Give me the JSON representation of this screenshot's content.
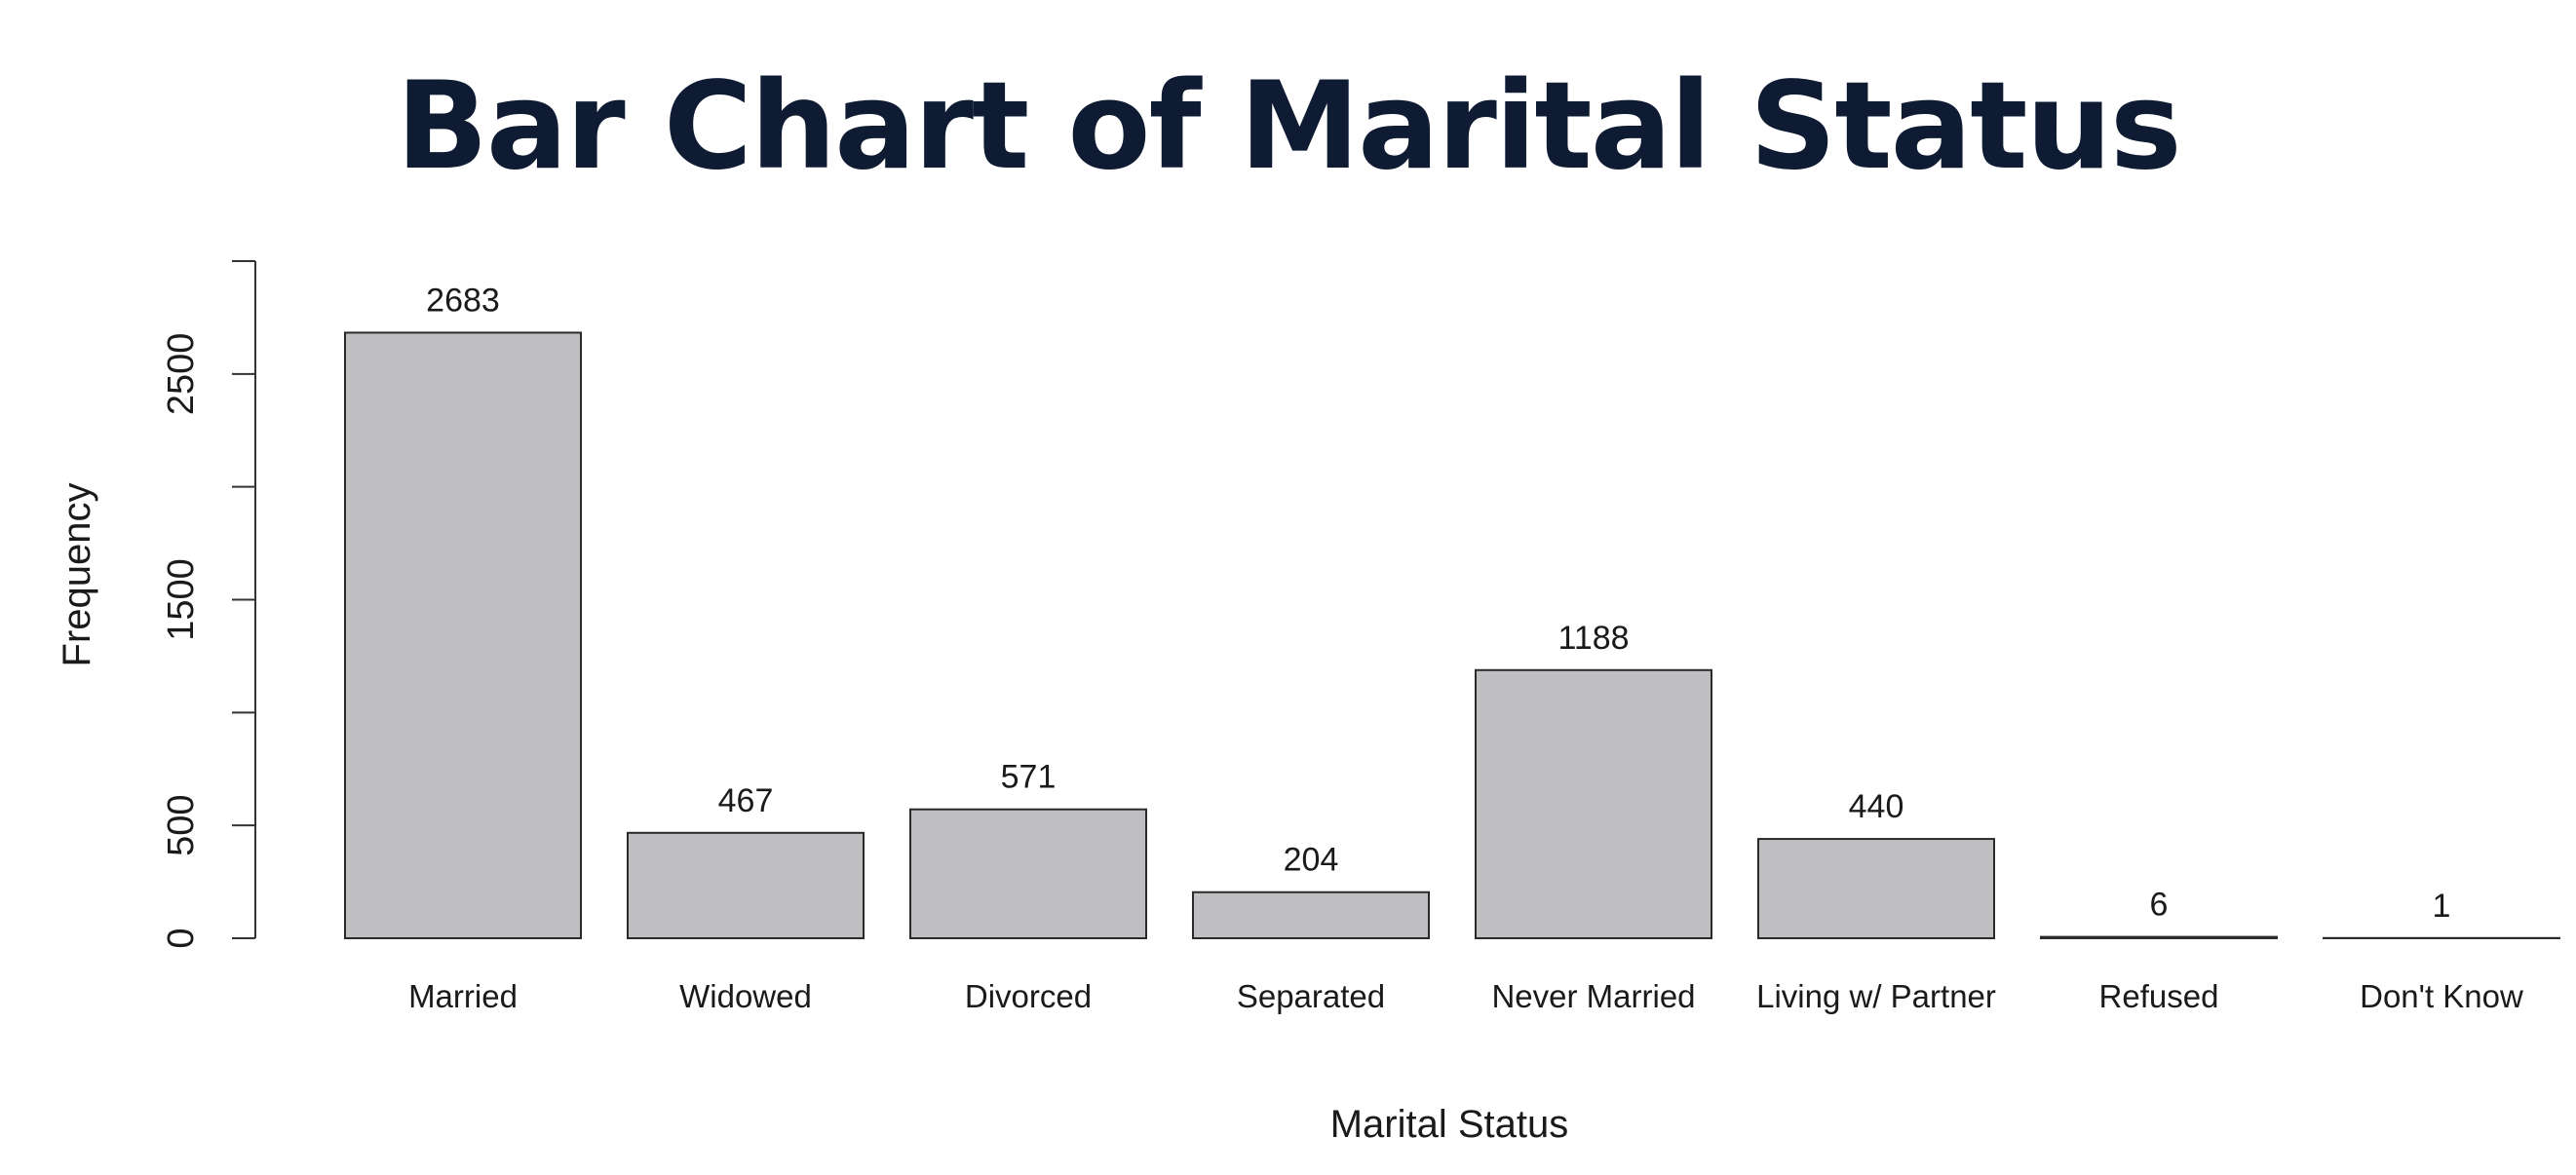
{
  "chart_data": {
    "type": "bar",
    "title": "Bar Chart of Marital Status",
    "xlabel": "Marital Status",
    "ylabel": "Frequency",
    "categories": [
      "Married",
      "Widowed",
      "Divorced",
      "Separated",
      "Never Married",
      "Living w/ Partner",
      "Refused",
      "Don't Know"
    ],
    "values": [
      2683,
      467,
      571,
      204,
      1188,
      440,
      6,
      1
    ],
    "data_labels": [
      "2683",
      "467",
      "571",
      "204",
      "1188",
      "440",
      "6",
      "1"
    ],
    "y_ticks": [
      0,
      500,
      1000,
      1500,
      2000,
      2500,
      3000
    ],
    "y_tick_labels": [
      "0",
      "500",
      "1500",
      "2500"
    ],
    "ylim": [
      0,
      3000
    ],
    "grid": false,
    "legend": "none",
    "bar_color": "#bfbec1",
    "bar_border_color": "#2a2a2a",
    "title_color": "#0f1b33"
  }
}
